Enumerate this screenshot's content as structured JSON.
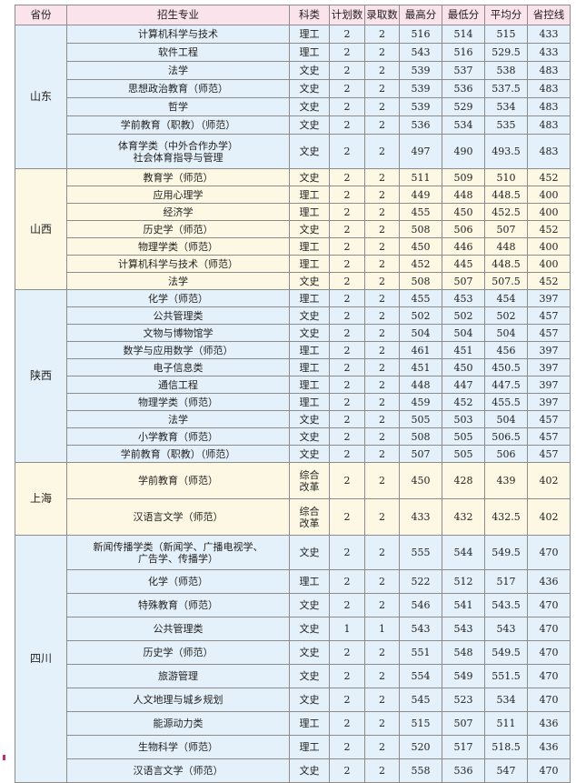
{
  "headers": [
    "省份",
    "招生专业",
    "科类",
    "计划数",
    "录取数",
    "最高分",
    "最低分",
    "平均分",
    "省控线"
  ],
  "colors": {
    "header": "#fbe3ec",
    "blue": "#e5f1fa",
    "yellow": "#fdf8e3",
    "border": "#8c8c8c"
  },
  "groups": [
    {
      "province": "山东",
      "tone": "blue",
      "rows": [
        [
          "计算机科学与技术",
          "理工",
          "2",
          "2",
          "516",
          "514",
          "515",
          "433"
        ],
        [
          "软件工程",
          "理工",
          "2",
          "2",
          "543",
          "516",
          "529.5",
          "433"
        ],
        [
          "法学",
          "文史",
          "2",
          "2",
          "539",
          "537",
          "538",
          "483"
        ],
        [
          "思想政治教育（师范）",
          "文史",
          "2",
          "2",
          "539",
          "536",
          "537.5",
          "483"
        ],
        [
          "哲学",
          "文史",
          "2",
          "2",
          "539",
          "529",
          "534",
          "483"
        ],
        [
          "学前教育（职教）（师范）",
          "文史",
          "2",
          "2",
          "536",
          "534",
          "535",
          "483"
        ],
        [
          "体育学类（中外合作办学）\n社会体育指导与管理",
          "文史",
          "2",
          "2",
          "497",
          "490",
          "493.5",
          "483"
        ]
      ]
    },
    {
      "province": "山西",
      "tone": "yellow",
      "rows": [
        [
          "教育学（师范）",
          "文史",
          "2",
          "2",
          "511",
          "509",
          "510",
          "452"
        ],
        [
          "应用心理学",
          "理工",
          "2",
          "2",
          "449",
          "448",
          "448.5",
          "400"
        ],
        [
          "经济学",
          "理工",
          "2",
          "2",
          "455",
          "450",
          "452.5",
          "400"
        ],
        [
          "历史学（师范）",
          "文史",
          "2",
          "2",
          "508",
          "506",
          "507",
          "452"
        ],
        [
          "物理学类（师范）",
          "理工",
          "2",
          "2",
          "450",
          "446",
          "448",
          "400"
        ],
        [
          "计算机科学与技术（师范）",
          "理工",
          "2",
          "2",
          "452",
          "445",
          "448.5",
          "400"
        ],
        [
          "法学",
          "文史",
          "2",
          "2",
          "508",
          "507",
          "507.5",
          "452"
        ]
      ]
    },
    {
      "province": "陕西",
      "tone": "blue",
      "rows": [
        [
          "化学（师范）",
          "理工",
          "2",
          "2",
          "455",
          "453",
          "454",
          "397"
        ],
        [
          "公共管理类",
          "文史",
          "2",
          "2",
          "502",
          "502",
          "502",
          "457"
        ],
        [
          "文物与博物馆学",
          "文史",
          "2",
          "2",
          "504",
          "504",
          "504",
          "457"
        ],
        [
          "数学与应用数学（师范）",
          "理工",
          "2",
          "2",
          "461",
          "451",
          "456",
          "397"
        ],
        [
          "电子信息类",
          "理工",
          "2",
          "2",
          "451",
          "450",
          "450.5",
          "397"
        ],
        [
          "通信工程",
          "理工",
          "2",
          "2",
          "448",
          "447",
          "447.5",
          "397"
        ],
        [
          "物理学类（师范）",
          "理工",
          "2",
          "2",
          "459",
          "452",
          "455.5",
          "397"
        ],
        [
          "法学",
          "文史",
          "2",
          "2",
          "505",
          "503",
          "504",
          "457"
        ],
        [
          "小学教育（师范）",
          "文史",
          "2",
          "2",
          "508",
          "505",
          "506.5",
          "457"
        ],
        [
          "学前教育（职教）（师范）",
          "文史",
          "2",
          "2",
          "507",
          "505",
          "506",
          "457"
        ]
      ]
    },
    {
      "province": "上海",
      "tone": "yellow",
      "rows": [
        [
          "学前教育（师范）",
          "综合\n改革",
          "2",
          "2",
          "450",
          "428",
          "439",
          "402"
        ],
        [
          "汉语言文学（师范）",
          "综合\n改革",
          "2",
          "2",
          "433",
          "432",
          "432.5",
          "402"
        ]
      ]
    },
    {
      "province": "四川",
      "tone": "blue",
      "rows": [
        [
          "新闻传播学类（新闻学、广播电视学、\n广告学、传播学）",
          "文史",
          "2",
          "2",
          "555",
          "544",
          "549.5",
          "470"
        ],
        [
          "化学（师范）",
          "理工",
          "2",
          "2",
          "522",
          "512",
          "517",
          "436"
        ],
        [
          "特殊教育（师范）",
          "文史",
          "2",
          "2",
          "546",
          "541",
          "543.5",
          "470"
        ],
        [
          "公共管理类",
          "文史",
          "1",
          "1",
          "543",
          "543",
          "543",
          "470"
        ],
        [
          "历史学（师范）",
          "文史",
          "2",
          "2",
          "551",
          "548",
          "549.5",
          "470"
        ],
        [
          "旅游管理",
          "文史",
          "2",
          "2",
          "554",
          "549",
          "551.5",
          "470"
        ],
        [
          "人文地理与城乡规划",
          "文史",
          "2",
          "2",
          "545",
          "523",
          "534",
          "470"
        ],
        [
          "能源动力类",
          "理工",
          "2",
          "2",
          "515",
          "507",
          "511",
          "436"
        ],
        [
          "生物科学（师范）",
          "理工",
          "2",
          "2",
          "520",
          "517",
          "518.5",
          "436"
        ],
        [
          "汉语言文学（师范）",
          "文史",
          "2",
          "2",
          "558",
          "536",
          "547",
          "470"
        ]
      ]
    }
  ]
}
